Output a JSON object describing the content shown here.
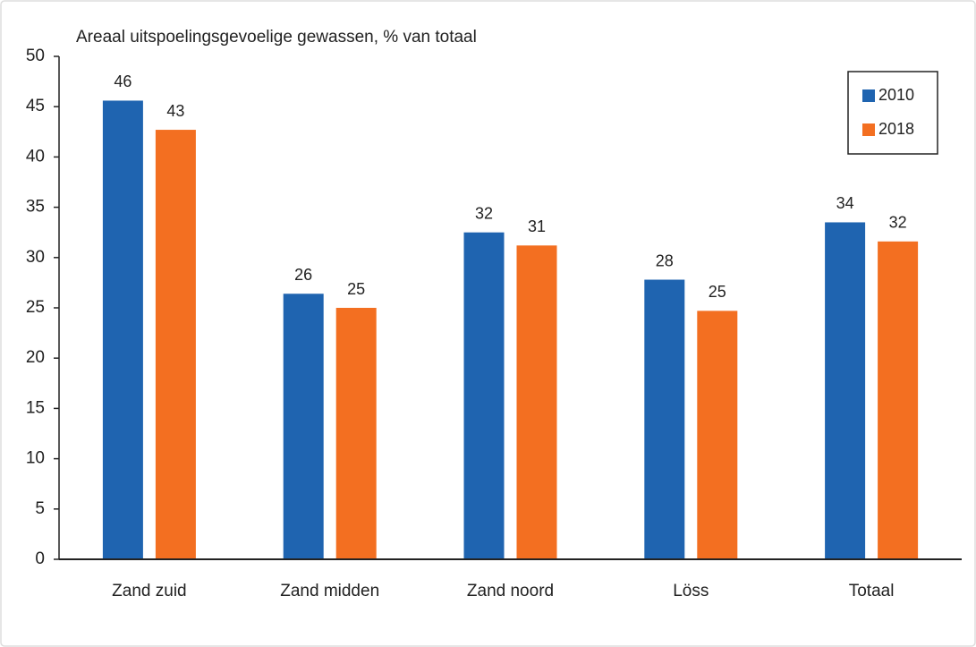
{
  "chart_data": {
    "type": "bar",
    "title": "Areaal uitspoelingsgevoelige gewassen, % van totaal",
    "categories": [
      "Zand zuid",
      "Zand midden",
      "Zand noord",
      "Löss",
      "Totaal"
    ],
    "series": [
      {
        "name": "2010",
        "color": "#1f64b0",
        "values": [
          45.6,
          26.4,
          32.5,
          27.8,
          33.5
        ],
        "value_labels": [
          "46",
          "26",
          "32",
          "28",
          "34"
        ]
      },
      {
        "name": "2018",
        "color": "#f36f21",
        "values": [
          42.7,
          25.0,
          31.2,
          24.7,
          31.6
        ],
        "value_labels": [
          "43",
          "25",
          "31",
          "25",
          "32"
        ]
      }
    ],
    "ylim": [
      0,
      50
    ],
    "yticks": [
      0,
      5,
      10,
      15,
      20,
      25,
      30,
      35,
      40,
      45,
      50
    ],
    "grid": false,
    "legend": "top-right"
  }
}
